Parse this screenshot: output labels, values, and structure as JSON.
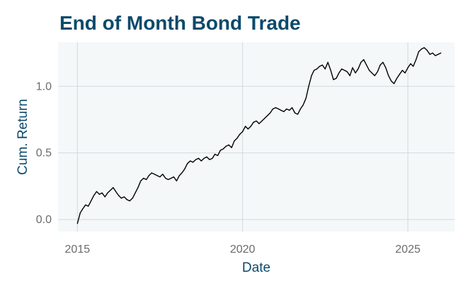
{
  "colors": {
    "title": "#0b4a6b",
    "axis_title": "#0b4a6b",
    "tick_label": "#6b6b6b",
    "panel_background": "#f4f8f9",
    "gridline": "#d3d9dc",
    "series_line": "#000000"
  },
  "chart_data": {
    "type": "line",
    "title": "End of Month Bond Trade",
    "xlabel": "Date",
    "ylabel": "Cum. Return",
    "x_axis": {
      "kind": "date",
      "range": [
        "2014-06-01",
        "2026-06-01"
      ],
      "ticks": [
        "2015-01-01",
        "2020-01-01",
        "2025-01-01"
      ],
      "tick_labels": [
        "2015",
        "2020",
        "2025"
      ]
    },
    "y_axis": {
      "range": [
        -0.09,
        1.33
      ],
      "ticks": [
        0.0,
        0.5,
        1.0
      ],
      "tick_labels": [
        "0.0",
        "0.5",
        "1.0"
      ]
    },
    "grid": true,
    "legend": "none",
    "series": [
      {
        "x": [
          "2015-01-01",
          "2015-02-01",
          "2015-03-01",
          "2015-04-01",
          "2015-05-01",
          "2015-06-01",
          "2015-07-01",
          "2015-08-01",
          "2015-09-01",
          "2015-10-01",
          "2015-11-01",
          "2015-12-01",
          "2016-01-01",
          "2016-02-01",
          "2016-03-01",
          "2016-04-01",
          "2016-05-01",
          "2016-06-01",
          "2016-07-01",
          "2016-08-01",
          "2016-09-01",
          "2016-10-01",
          "2016-11-01",
          "2016-12-01",
          "2017-01-01",
          "2017-02-01",
          "2017-03-01",
          "2017-04-01",
          "2017-05-01",
          "2017-06-01",
          "2017-07-01",
          "2017-08-01",
          "2017-09-01",
          "2017-10-01",
          "2017-11-01",
          "2017-12-01",
          "2018-01-01",
          "2018-02-01",
          "2018-03-01",
          "2018-04-01",
          "2018-05-01",
          "2018-06-01",
          "2018-07-01",
          "2018-08-01",
          "2018-09-01",
          "2018-10-01",
          "2018-11-01",
          "2018-12-01",
          "2019-01-01",
          "2019-02-01",
          "2019-03-01",
          "2019-04-01",
          "2019-05-01",
          "2019-06-01",
          "2019-07-01",
          "2019-08-01",
          "2019-09-01",
          "2019-10-01",
          "2019-11-01",
          "2019-12-01",
          "2020-01-01",
          "2020-02-01",
          "2020-03-01",
          "2020-04-01",
          "2020-05-01",
          "2020-06-01",
          "2020-07-01",
          "2020-08-01",
          "2020-09-01",
          "2020-10-01",
          "2020-11-01",
          "2020-12-01",
          "2021-01-01",
          "2021-02-01",
          "2021-03-01",
          "2021-04-01",
          "2021-05-01",
          "2021-06-01",
          "2021-07-01",
          "2021-08-01",
          "2021-09-01",
          "2021-10-01",
          "2021-11-01",
          "2021-12-01",
          "2022-01-01",
          "2022-02-01",
          "2022-03-01",
          "2022-04-01",
          "2022-05-01",
          "2022-06-01",
          "2022-07-01",
          "2022-08-01",
          "2022-09-01",
          "2022-10-01",
          "2022-11-01",
          "2022-12-01",
          "2023-01-01",
          "2023-02-01",
          "2023-03-01",
          "2023-04-01",
          "2023-05-01",
          "2023-06-01",
          "2023-07-01",
          "2023-08-01",
          "2023-09-01",
          "2023-10-01",
          "2023-11-01",
          "2023-12-01",
          "2024-01-01",
          "2024-02-01",
          "2024-03-01",
          "2024-04-01",
          "2024-05-01",
          "2024-06-01",
          "2024-07-01",
          "2024-08-01",
          "2024-09-01",
          "2024-10-01",
          "2024-11-01",
          "2024-12-01",
          "2025-01-01",
          "2025-02-01",
          "2025-03-01",
          "2025-04-01",
          "2025-05-01",
          "2025-06-01",
          "2025-07-01",
          "2025-08-01",
          "2025-09-01",
          "2025-10-01",
          "2025-11-01",
          "2025-12-01",
          "2026-01-01"
        ],
        "y": [
          -0.03,
          0.05,
          0.08,
          0.11,
          0.1,
          0.14,
          0.18,
          0.21,
          0.19,
          0.2,
          0.17,
          0.2,
          0.22,
          0.24,
          0.21,
          0.18,
          0.16,
          0.17,
          0.15,
          0.14,
          0.16,
          0.2,
          0.24,
          0.29,
          0.31,
          0.3,
          0.33,
          0.35,
          0.34,
          0.33,
          0.32,
          0.34,
          0.31,
          0.3,
          0.31,
          0.32,
          0.29,
          0.33,
          0.35,
          0.38,
          0.42,
          0.44,
          0.43,
          0.45,
          0.46,
          0.44,
          0.46,
          0.47,
          0.45,
          0.46,
          0.49,
          0.48,
          0.52,
          0.53,
          0.55,
          0.56,
          0.54,
          0.59,
          0.61,
          0.64,
          0.66,
          0.7,
          0.68,
          0.7,
          0.73,
          0.74,
          0.72,
          0.74,
          0.76,
          0.78,
          0.8,
          0.83,
          0.84,
          0.83,
          0.82,
          0.81,
          0.83,
          0.82,
          0.84,
          0.8,
          0.79,
          0.83,
          0.86,
          0.91,
          1.0,
          1.08,
          1.12,
          1.13,
          1.15,
          1.16,
          1.13,
          1.18,
          1.12,
          1.05,
          1.06,
          1.1,
          1.13,
          1.12,
          1.11,
          1.08,
          1.14,
          1.1,
          1.13,
          1.18,
          1.2,
          1.16,
          1.12,
          1.1,
          1.08,
          1.11,
          1.16,
          1.18,
          1.14,
          1.08,
          1.04,
          1.02,
          1.06,
          1.09,
          1.12,
          1.1,
          1.14,
          1.17,
          1.15,
          1.2,
          1.26,
          1.28,
          1.29,
          1.27,
          1.24,
          1.25,
          1.23,
          1.24,
          1.25
        ]
      }
    ]
  }
}
